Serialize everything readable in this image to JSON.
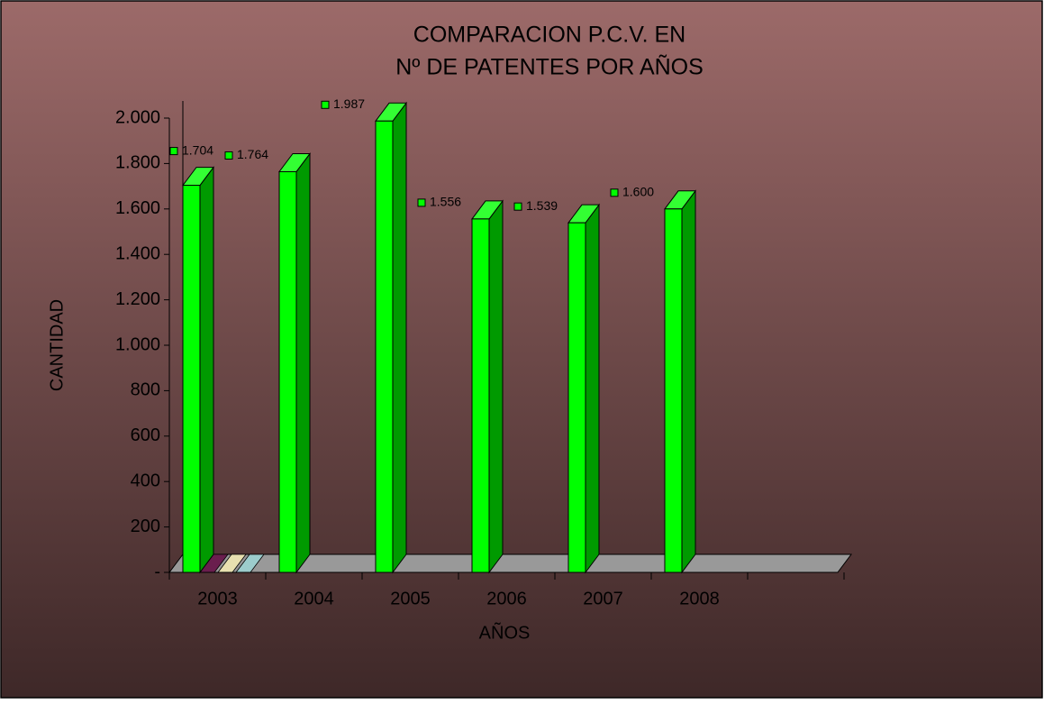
{
  "chart_data": {
    "type": "bar3d",
    "title": "COMPARACION P.C.V.  EN",
    "subtitle": "Nº DE PATENTES POR AÑOS",
    "y_label": "CANTIDAD",
    "x_label": "AÑOS",
    "categories": [
      "2003",
      "2004",
      "2005",
      "2006",
      "2007",
      "2008"
    ],
    "values": [
      1704,
      1764,
      1987,
      1556,
      1539,
      1600
    ],
    "value_labels": [
      "1.704",
      "1.764",
      "1.987",
      "1.556",
      "1.539",
      "1.600"
    ],
    "color": "#00ff00",
    "ylim": [
      0,
      2000
    ],
    "yticks": [
      {
        "value": 0,
        "label": "-"
      },
      200,
      400,
      600,
      800,
      {
        "value": 1000,
        "label": "1.000"
      },
      {
        "value": 1200,
        "label": "1.200"
      },
      {
        "value": 1400,
        "label": "1.400"
      },
      {
        "value": 1600,
        "label": "1.600"
      },
      {
        "value": 1800,
        "label": "1.800"
      },
      {
        "value": 2000,
        "label": "2.000"
      }
    ],
    "grid": false
  }
}
